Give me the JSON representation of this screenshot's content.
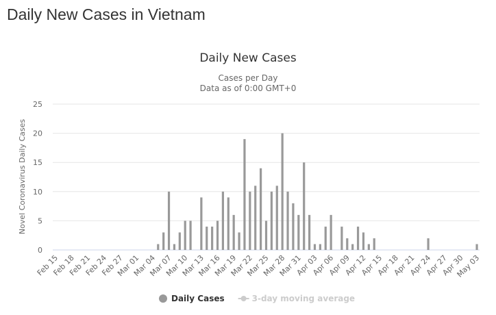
{
  "page_title": "Daily New Cases in Vietnam",
  "chart_data": {
    "type": "bar",
    "title": "Daily New Cases",
    "subtitle": [
      "Cases per Day",
      "Data as of 0:00 GMT+0"
    ],
    "y_label": "Novel Coronavirus Daily Cases",
    "categories": [
      "Feb 15",
      null,
      null,
      "Feb 18",
      null,
      null,
      "Feb 21",
      null,
      null,
      "Feb 24",
      null,
      null,
      "Feb 27",
      null,
      null,
      "Mar 01",
      null,
      null,
      "Mar 04",
      null,
      null,
      "Mar 07",
      null,
      null,
      "Mar 10",
      null,
      null,
      "Mar 13",
      null,
      null,
      "Mar 16",
      null,
      null,
      "Mar 19",
      null,
      null,
      "Mar 22",
      null,
      null,
      "Mar 25",
      null,
      null,
      "Mar 28",
      null,
      null,
      "Mar 31",
      null,
      null,
      "Apr 03",
      null,
      null,
      "Apr 06",
      null,
      null,
      "Apr 09",
      null,
      null,
      "Apr 12",
      null,
      null,
      "Apr 15",
      null,
      null,
      "Apr 18",
      null,
      null,
      "Apr 21",
      null,
      null,
      "Apr 24",
      null,
      null,
      "Apr 27",
      null,
      null,
      "Apr 30",
      null,
      null,
      "May 03"
    ],
    "series": [
      {
        "name": "Daily Cases",
        "color": "#999999",
        "values": [
          0,
          0,
          0,
          0,
          0,
          0,
          0,
          0,
          0,
          0,
          0,
          0,
          0,
          0,
          0,
          0,
          0,
          0,
          0,
          1,
          3,
          10,
          1,
          3,
          5,
          5,
          0,
          9,
          4,
          4,
          5,
          10,
          9,
          6,
          3,
          19,
          10,
          11,
          14,
          5,
          10,
          11,
          20,
          10,
          8,
          6,
          15,
          6,
          1,
          1,
          4,
          6,
          0,
          4,
          2,
          1,
          4,
          3,
          1,
          2,
          0,
          0,
          0,
          0,
          0,
          0,
          0,
          0,
          0,
          2,
          0,
          0,
          0,
          0,
          0,
          0,
          0,
          0,
          1
        ]
      },
      {
        "name": "3-day moving average",
        "color": "#cccccc"
      }
    ],
    "ylim": [
      0,
      25
    ],
    "yticks": [
      0,
      5,
      10,
      15,
      20,
      25
    ],
    "grid": true,
    "legend": "bottom"
  }
}
